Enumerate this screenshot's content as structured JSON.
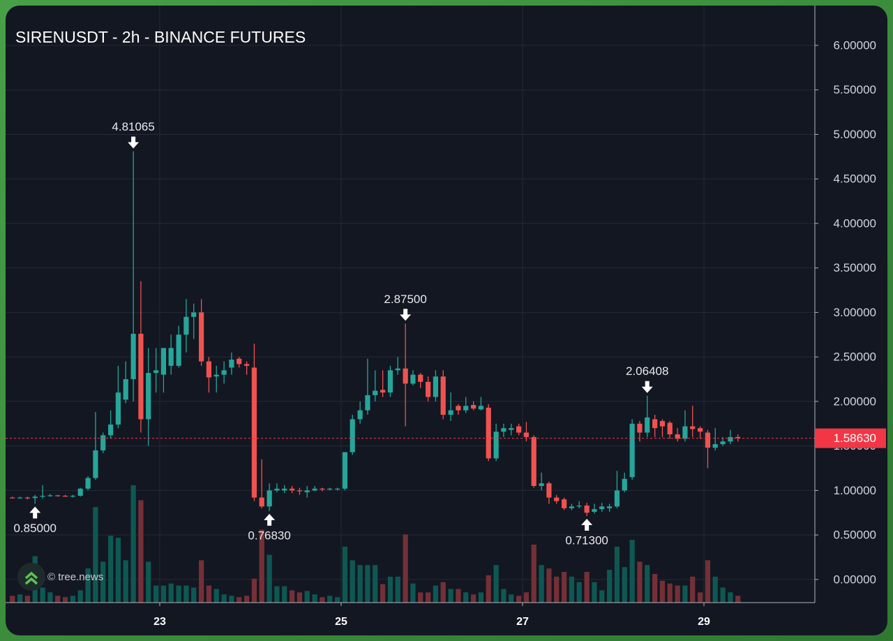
{
  "chart_data": {
    "type": "candlestick",
    "title": "SIRENUSDT - 2h - BINANCE FUTURES",
    "watermark": "© tree.news",
    "up_color": "#26a69a",
    "down_color": "#ef5350",
    "volume_up_color": "#0e5853",
    "volume_down_color": "#743036",
    "grid": true,
    "x": [
      21.333,
      21.417,
      21.5,
      21.583,
      21.667,
      21.75,
      21.833,
      21.917,
      22,
      22.083,
      22.167,
      22.25,
      22.333,
      22.417,
      22.5,
      22.583,
      22.667,
      22.75,
      22.833,
      22.917,
      23,
      23.083,
      23.167,
      23.25,
      23.333,
      23.417,
      23.5,
      23.583,
      23.667,
      23.75,
      23.833,
      23.917,
      24,
      24.083,
      24.167,
      24.25,
      24.333,
      24.417,
      24.5,
      24.583,
      24.667,
      24.75,
      24.833,
      24.917,
      25,
      25.083,
      25.167,
      25.25,
      25.333,
      25.417,
      25.5,
      25.583,
      25.667,
      25.75,
      25.833,
      25.917,
      26,
      26.083,
      26.167,
      26.25,
      26.333,
      26.417,
      26.5,
      26.583,
      26.667,
      26.75,
      26.833,
      26.917,
      27,
      27.083,
      27.167,
      27.25,
      27.333,
      27.417,
      27.5,
      27.583,
      27.667,
      27.75,
      27.833,
      27.917,
      28,
      28.083,
      28.167,
      28.25,
      28.333,
      28.417,
      28.5,
      28.583,
      28.667,
      28.75,
      28.833,
      28.917,
      29,
      29.083,
      29.167,
      29.25,
      29.333
    ],
    "open": [
      0.92,
      0.915,
      0.92,
      0.915,
      0.93,
      0.94,
      0.945,
      0.94,
      0.935,
      0.94,
      1.02,
      1.14,
      1.45,
      1.62,
      1.74,
      2.02,
      2.25,
      2.76,
      1.8,
      2.32,
      2.3,
      2.4,
      2.4,
      2.75,
      2.95,
      3.0,
      2.45,
      2.28,
      2.3,
      2.38,
      2.48,
      2.42,
      2.38,
      0.92,
      0.82,
      1.0,
      1.0,
      1.02,
      1.0,
      0.98,
      1.0,
      1.02,
      1.01,
      1.02,
      1.02,
      1.43,
      1.8,
      1.9,
      2.07,
      2.13,
      2.1,
      2.35,
      2.37,
      2.2,
      2.3,
      2.22,
      2.05,
      2.28,
      1.85,
      1.95,
      1.9,
      1.96,
      1.91,
      1.93,
      1.36,
      1.66,
      1.68,
      1.72,
      1.65,
      1.6,
      1.05,
      1.08,
      0.92,
      0.9,
      0.8,
      0.82,
      0.83,
      0.76,
      0.79,
      0.8,
      0.82,
      1.0,
      1.15,
      1.75,
      1.65,
      1.8,
      1.78,
      1.76,
      1.63,
      1.58,
      1.72,
      1.7,
      1.65,
      1.48,
      1.52,
      1.55,
      1.6
    ],
    "high": [
      0.93,
      0.93,
      0.93,
      0.95,
      1.06,
      0.96,
      0.95,
      0.95,
      0.95,
      1.03,
      1.16,
      1.88,
      1.65,
      1.9,
      2.4,
      2.45,
      4.81065,
      3.35,
      2.6,
      2.6,
      2.6,
      2.75,
      2.85,
      3.15,
      3.1,
      3.15,
      2.5,
      2.4,
      2.45,
      2.55,
      2.5,
      2.45,
      2.65,
      1.35,
      1.08,
      1.08,
      1.06,
      1.05,
      1.03,
      1.05,
      1.05,
      1.03,
      1.03,
      1.03,
      1.43,
      1.85,
      2.0,
      2.48,
      2.35,
      2.35,
      2.4,
      2.5,
      2.875,
      2.35,
      2.32,
      2.28,
      2.35,
      2.35,
      2.1,
      1.97,
      2.05,
      2.0,
      2.05,
      1.97,
      1.75,
      1.75,
      1.75,
      1.75,
      1.77,
      1.62,
      1.2,
      1.1,
      0.95,
      0.92,
      0.85,
      0.88,
      0.86,
      0.85,
      0.86,
      0.85,
      1.22,
      1.2,
      1.8,
      1.78,
      2.06408,
      1.85,
      1.8,
      1.78,
      1.7,
      1.9,
      1.95,
      1.72,
      1.68,
      1.7,
      1.6,
      1.68,
      1.63
    ],
    "low": [
      0.91,
      0.91,
      0.9,
      0.85,
      0.91,
      0.93,
      0.93,
      0.93,
      0.92,
      0.93,
      1.0,
      1.12,
      1.42,
      1.58,
      1.7,
      1.98,
      2.0,
      1.65,
      1.5,
      2.1,
      2.1,
      2.3,
      2.38,
      2.55,
      2.7,
      2.4,
      2.1,
      2.1,
      2.2,
      2.3,
      2.38,
      2.3,
      0.88,
      0.8,
      0.7683,
      0.98,
      0.97,
      0.97,
      0.95,
      0.92,
      0.99,
      0.99,
      1.0,
      1.0,
      1.0,
      1.4,
      1.75,
      1.85,
      2.0,
      2.05,
      2.05,
      2.3,
      1.72,
      2.18,
      2.15,
      2.0,
      2.0,
      1.8,
      1.78,
      1.85,
      1.87,
      1.9,
      1.9,
      1.33,
      1.33,
      1.6,
      1.62,
      1.62,
      1.55,
      1.03,
      1.0,
      0.85,
      0.85,
      0.78,
      0.78,
      0.8,
      0.713,
      0.74,
      0.76,
      0.76,
      0.8,
      0.98,
      1.12,
      1.55,
      1.6,
      1.6,
      1.6,
      1.58,
      1.55,
      1.55,
      1.6,
      1.58,
      1.25,
      1.45,
      1.5,
      1.52,
      1.55
    ],
    "close": [
      0.915,
      0.92,
      0.915,
      0.93,
      0.94,
      0.945,
      0.94,
      0.935,
      0.94,
      1.02,
      1.14,
      1.45,
      1.62,
      1.74,
      2.1,
      2.25,
      2.76,
      1.8,
      2.32,
      2.35,
      2.6,
      2.6,
      2.75,
      2.95,
      3.0,
      2.45,
      2.27,
      2.3,
      2.35,
      2.47,
      2.42,
      2.4,
      0.92,
      0.82,
      1.0,
      1.02,
      1.02,
      1.0,
      0.99,
      1.0,
      1.02,
      1.01,
      1.02,
      1.02,
      1.43,
      1.8,
      1.9,
      2.07,
      2.12,
      2.1,
      2.35,
      2.37,
      2.2,
      2.3,
      2.22,
      2.05,
      2.28,
      1.85,
      1.9,
      1.9,
      1.95,
      1.92,
      1.95,
      1.36,
      1.66,
      1.7,
      1.7,
      1.65,
      1.6,
      1.05,
      1.08,
      0.92,
      0.88,
      0.8,
      0.82,
      0.83,
      0.75,
      0.79,
      0.82,
      0.82,
      1.0,
      1.13,
      1.75,
      1.65,
      1.82,
      1.7,
      1.72,
      1.63,
      1.58,
      1.72,
      1.69,
      1.66,
      1.48,
      1.52,
      1.55,
      1.6,
      1.5863
    ],
    "volume": [
      10,
      12,
      10,
      68,
      22,
      15,
      10,
      8,
      10,
      18,
      50,
      140,
      60,
      98,
      95,
      62,
      172,
      150,
      60,
      25,
      25,
      28,
      25,
      25,
      22,
      62,
      25,
      20,
      12,
      10,
      8,
      10,
      35,
      107,
      70,
      24,
      24,
      18,
      15,
      17,
      12,
      8,
      10,
      8,
      82,
      62,
      55,
      55,
      55,
      27,
      38,
      38,
      100,
      28,
      15,
      15,
      25,
      30,
      20,
      20,
      15,
      12,
      15,
      40,
      55,
      20,
      12,
      10,
      15,
      85,
      55,
      50,
      38,
      45,
      38,
      30,
      45,
      30,
      18,
      48,
      82,
      52,
      92,
      60,
      55,
      42,
      32,
      28,
      25,
      25,
      38,
      15,
      62,
      38,
      22,
      15,
      10
    ],
    "volume_lim": [
      0,
      350
    ],
    "xlim": [
      21.3,
      30.223
    ],
    "xticks": [
      23,
      25,
      27,
      29
    ],
    "ylim": [
      -0.26,
      6.447
    ],
    "yticks": [
      {
        "value": 0,
        "label": "0.00000"
      },
      {
        "value": 0.5,
        "label": "0.50000"
      },
      {
        "value": 1,
        "label": "1.00000"
      },
      {
        "value": 1.5,
        "label": "1.50000"
      },
      {
        "value": 2,
        "label": "2.00000"
      },
      {
        "value": 2.5,
        "label": "2.50000"
      },
      {
        "value": 3,
        "label": "3.00000"
      },
      {
        "value": 3.5,
        "label": "3.50000"
      },
      {
        "value": 4,
        "label": "4.00000"
      },
      {
        "value": 4.5,
        "label": "4.50000"
      },
      {
        "value": 5,
        "label": "5.00000"
      },
      {
        "value": 5.5,
        "label": "5.50000"
      },
      {
        "value": 6,
        "label": "6.00000"
      }
    ],
    "price_line": {
      "value": 1.5863,
      "label": "1.58630",
      "color": "#f23645"
    },
    "annotations": [
      {
        "x": 22.667,
        "value": 4.81065,
        "label": "4.81065",
        "position": "above"
      },
      {
        "x": 25.667,
        "value": 2.875,
        "label": "2.87500",
        "position": "above"
      },
      {
        "x": 28.333,
        "value": 2.06408,
        "label": "2.06408",
        "position": "above"
      },
      {
        "x": 21.583,
        "value": 0.85,
        "label": "0.85000",
        "position": "below"
      },
      {
        "x": 24.167,
        "value": 0.7683,
        "label": "0.76830",
        "position": "below"
      },
      {
        "x": 27.667,
        "value": 0.713,
        "label": "0.71300",
        "position": "below"
      }
    ]
  }
}
